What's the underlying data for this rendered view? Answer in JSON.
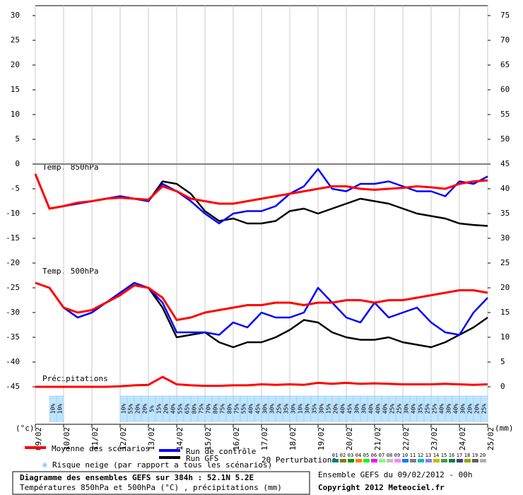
{
  "chart_data": {
    "type": "line",
    "annotations": [
      "Temp. 850hPa",
      "Temp. 500hPa",
      "Précipitations"
    ],
    "y_label": "(°c)",
    "y2_label": "(mm)",
    "x": [
      0,
      12,
      24,
      36,
      48,
      60,
      72,
      84,
      96,
      108,
      120,
      132,
      144,
      156,
      168,
      180,
      192,
      204,
      216,
      228,
      240,
      252,
      264,
      276,
      288,
      300,
      312,
      324,
      336,
      348,
      360,
      372,
      384
    ],
    "xlim": [
      0,
      384
    ],
    "xticks": [
      {
        "value": 0,
        "label": "09/02"
      },
      {
        "value": 24,
        "label": "10/02"
      },
      {
        "value": 48,
        "label": "11/02"
      },
      {
        "value": 72,
        "label": "12/02"
      },
      {
        "value": 96,
        "label": "13/02"
      },
      {
        "value": 120,
        "label": "14/02"
      },
      {
        "value": 144,
        "label": "15/02"
      },
      {
        "value": 168,
        "label": "16/02"
      },
      {
        "value": 192,
        "label": "17/02"
      },
      {
        "value": 216,
        "label": "18/02"
      },
      {
        "value": 240,
        "label": "19/02"
      },
      {
        "value": 264,
        "label": "20/02"
      },
      {
        "value": 288,
        "label": "21/02"
      },
      {
        "value": 312,
        "label": "22/02"
      },
      {
        "value": 336,
        "label": "23/02"
      },
      {
        "value": 360,
        "label": "24/02"
      },
      {
        "value": 384,
        "label": "25/02"
      }
    ],
    "ylim": [
      -45,
      30
    ],
    "yticks": [
      30,
      25,
      20,
      15,
      10,
      5,
      0,
      -5,
      -10,
      -15,
      -20,
      -25,
      -30,
      -35,
      -40,
      -45
    ],
    "y2lim": [
      0,
      75
    ],
    "y2ticks": [
      75,
      70,
      65,
      60,
      55,
      50,
      45,
      40,
      35,
      30,
      25,
      20,
      15,
      10,
      5,
      0
    ],
    "grid": true,
    "series": [
      {
        "name": "Moyenne des scénarios",
        "color": "#ff0000",
        "values": [
          -2,
          -9,
          -8.5,
          -7.8,
          -7.5,
          -7,
          -6.8,
          -7,
          -7.2,
          -4.5,
          -5.5,
          -7,
          -7.5,
          -8,
          -8,
          -7.5,
          -7,
          -6.5,
          -6,
          -5.5,
          -5,
          -4.5,
          -4.5,
          -5,
          -5.2,
          -5,
          -4.8,
          -4.5,
          -4.7,
          -5,
          -4,
          -3.5,
          -3.3
        ]
      },
      {
        "name": "Run de contrôle",
        "color": "#0000ff",
        "values": [
          -2,
          -9,
          -8.5,
          -8,
          -7.5,
          -7,
          -6.5,
          -7,
          -7.5,
          -4,
          -5.5,
          -7.5,
          -10,
          -12,
          -10,
          -9.5,
          -9.5,
          -8.5,
          -6,
          -4.5,
          -1,
          -5,
          -5.5,
          -4,
          -4,
          -3.5,
          -4.5,
          -5.5,
          -5.5,
          -6.5,
          -3.5,
          -4,
          -2.5
        ]
      },
      {
        "name": "Run GFS",
        "color": "#000000",
        "values": [
          -2,
          -9,
          -8.5,
          -8,
          -7.5,
          -7,
          -6.5,
          -7,
          -7.5,
          -3.5,
          -4,
          -6,
          -9.5,
          -11.5,
          -11,
          -12,
          -12,
          -11.5,
          -9.5,
          -9,
          -10,
          -9,
          -8,
          -7,
          -7.5,
          -8,
          -9,
          -10,
          -10.5,
          -11,
          -12,
          -12.3,
          -12.5
        ]
      },
      {
        "name": "Moyenne des scénarios",
        "color": "#ff0000",
        "values": [
          -24,
          -25,
          -29,
          -30,
          -29.5,
          -28,
          -26.5,
          -24.5,
          -25,
          -27,
          -31.5,
          -31,
          -30,
          -29.5,
          -29,
          -28.5,
          -28.5,
          -28,
          -28,
          -28.5,
          -28,
          -28,
          -27.5,
          -27.5,
          -28,
          -27.5,
          -27.5,
          -27,
          -26.5,
          -26,
          -25.5,
          -25.5,
          -26
        ]
      },
      {
        "name": "Run de contrôle",
        "color": "#0000ff",
        "values": [
          -24,
          -25,
          -29,
          -31,
          -30,
          -28,
          -26,
          -24,
          -25,
          -28,
          -34,
          -34,
          -34,
          -34.5,
          -32,
          -33,
          -30,
          -31,
          -31,
          -30,
          -25,
          -28,
          -31,
          -32,
          -28,
          -31,
          -30,
          -29,
          -32,
          -34,
          -34.5,
          -30,
          -27
        ]
      },
      {
        "name": "Run GFS",
        "color": "#000000",
        "values": [
          -24,
          -25,
          -29,
          -31,
          -30,
          -28,
          -26,
          -24,
          -25,
          -29,
          -35,
          -34.5,
          -34,
          -36,
          -37,
          -36,
          -36,
          -35,
          -33.5,
          -31.5,
          -32,
          -34,
          -35,
          -35.5,
          -35.5,
          -35,
          -36,
          -36.5,
          -37,
          -36,
          -34.5,
          -33,
          -31
        ]
      },
      {
        "name": "Moyenne des scénarios",
        "color": "#ff0000",
        "axis": "y2",
        "values": [
          0,
          0,
          0,
          0,
          0,
          0,
          0.1,
          0.3,
          0.4,
          2,
          0.5,
          0.3,
          0.2,
          0.2,
          0.3,
          0.3,
          0.5,
          0.4,
          0.5,
          0.4,
          0.8,
          0.6,
          0.8,
          0.6,
          0.7,
          0.6,
          0.5,
          0.5,
          0.5,
          0.6,
          0.5,
          0.4,
          0.5
        ]
      }
    ],
    "snow_risk": {
      "label": "Risque neige (par rapport a tous les scénarios)",
      "x": [
        15,
        21,
        75,
        81,
        87,
        93,
        99,
        105,
        111,
        117,
        123,
        129,
        135,
        141,
        147,
        153,
        159,
        165,
        171,
        177,
        183,
        189,
        195,
        201,
        207,
        213,
        219,
        225,
        231,
        237,
        243,
        249,
        255,
        261,
        267,
        273,
        279,
        285,
        291,
        297,
        303,
        309,
        315,
        321,
        327,
        333,
        339,
        345,
        351,
        357,
        363,
        369,
        375,
        381
      ],
      "values": [
        10,
        10,
        10,
        55,
        20,
        20,
        5,
        15,
        20,
        40,
        55,
        65,
        80,
        75,
        70,
        80,
        75,
        80,
        75,
        55,
        40,
        45,
        30,
        30,
        25,
        35,
        30,
        10,
        30,
        35,
        30,
        15,
        20,
        40,
        45,
        30,
        30,
        40,
        40,
        40,
        25,
        25,
        30,
        40,
        35,
        25,
        25,
        40,
        30,
        40,
        30,
        20,
        20,
        25
      ],
      "value_labels": [
        "10%",
        "10%",
        "10%",
        "55%",
        "20%",
        "20%",
        "5%",
        "15%",
        "20%",
        "40%",
        "55%",
        "65%",
        "80%",
        "75%",
        "70%",
        "80%",
        "75%",
        "80%",
        "75%",
        "55%",
        "40%",
        "45%",
        "30%",
        "30%",
        "25%",
        "35%",
        "30%",
        "10%",
        "30%",
        "35%",
        "30%",
        "15%",
        "20%",
        "40%",
        "45%",
        "30%",
        "30%",
        "40%",
        "40%",
        "40%",
        "25%",
        "25%",
        "30%",
        "40%",
        "35%",
        "25%",
        "25%",
        "40%",
        "30%",
        "40%",
        "30%",
        "20%",
        "20%",
        "25%"
      ]
    },
    "perturbations": {
      "label": "20 Perturbations",
      "ids": [
        "01",
        "02",
        "03",
        "04",
        "05",
        "06",
        "07",
        "08",
        "09",
        "10",
        "11",
        "12",
        "13",
        "14",
        "15",
        "16",
        "17",
        "18",
        "19",
        "20"
      ],
      "colors": [
        "#008080",
        "#808000",
        "#00a000",
        "#ff8000",
        "#00ff00",
        "#ff00ff",
        "#80ff80",
        "#c0c0c0",
        "#ff80ff",
        "#0080ff",
        "#808080",
        "#00c0c0",
        "#8080ff",
        "#c0c000",
        "#40a040",
        "#008040",
        "#404080",
        "#a0a000",
        "#606060",
        "#b0b0b0"
      ]
    },
    "footer": {
      "title": "Diagramme des ensembles GEFS sur 384h : 52.1N 5.2E",
      "subtitle": "Températures 850hPa et 500hPa (°C) , précipitations (mm)",
      "run": "Ensemble GEFS du 09/02/2012 - 00h",
      "copyright": "Copyright 2012 Meteociel.fr"
    }
  }
}
